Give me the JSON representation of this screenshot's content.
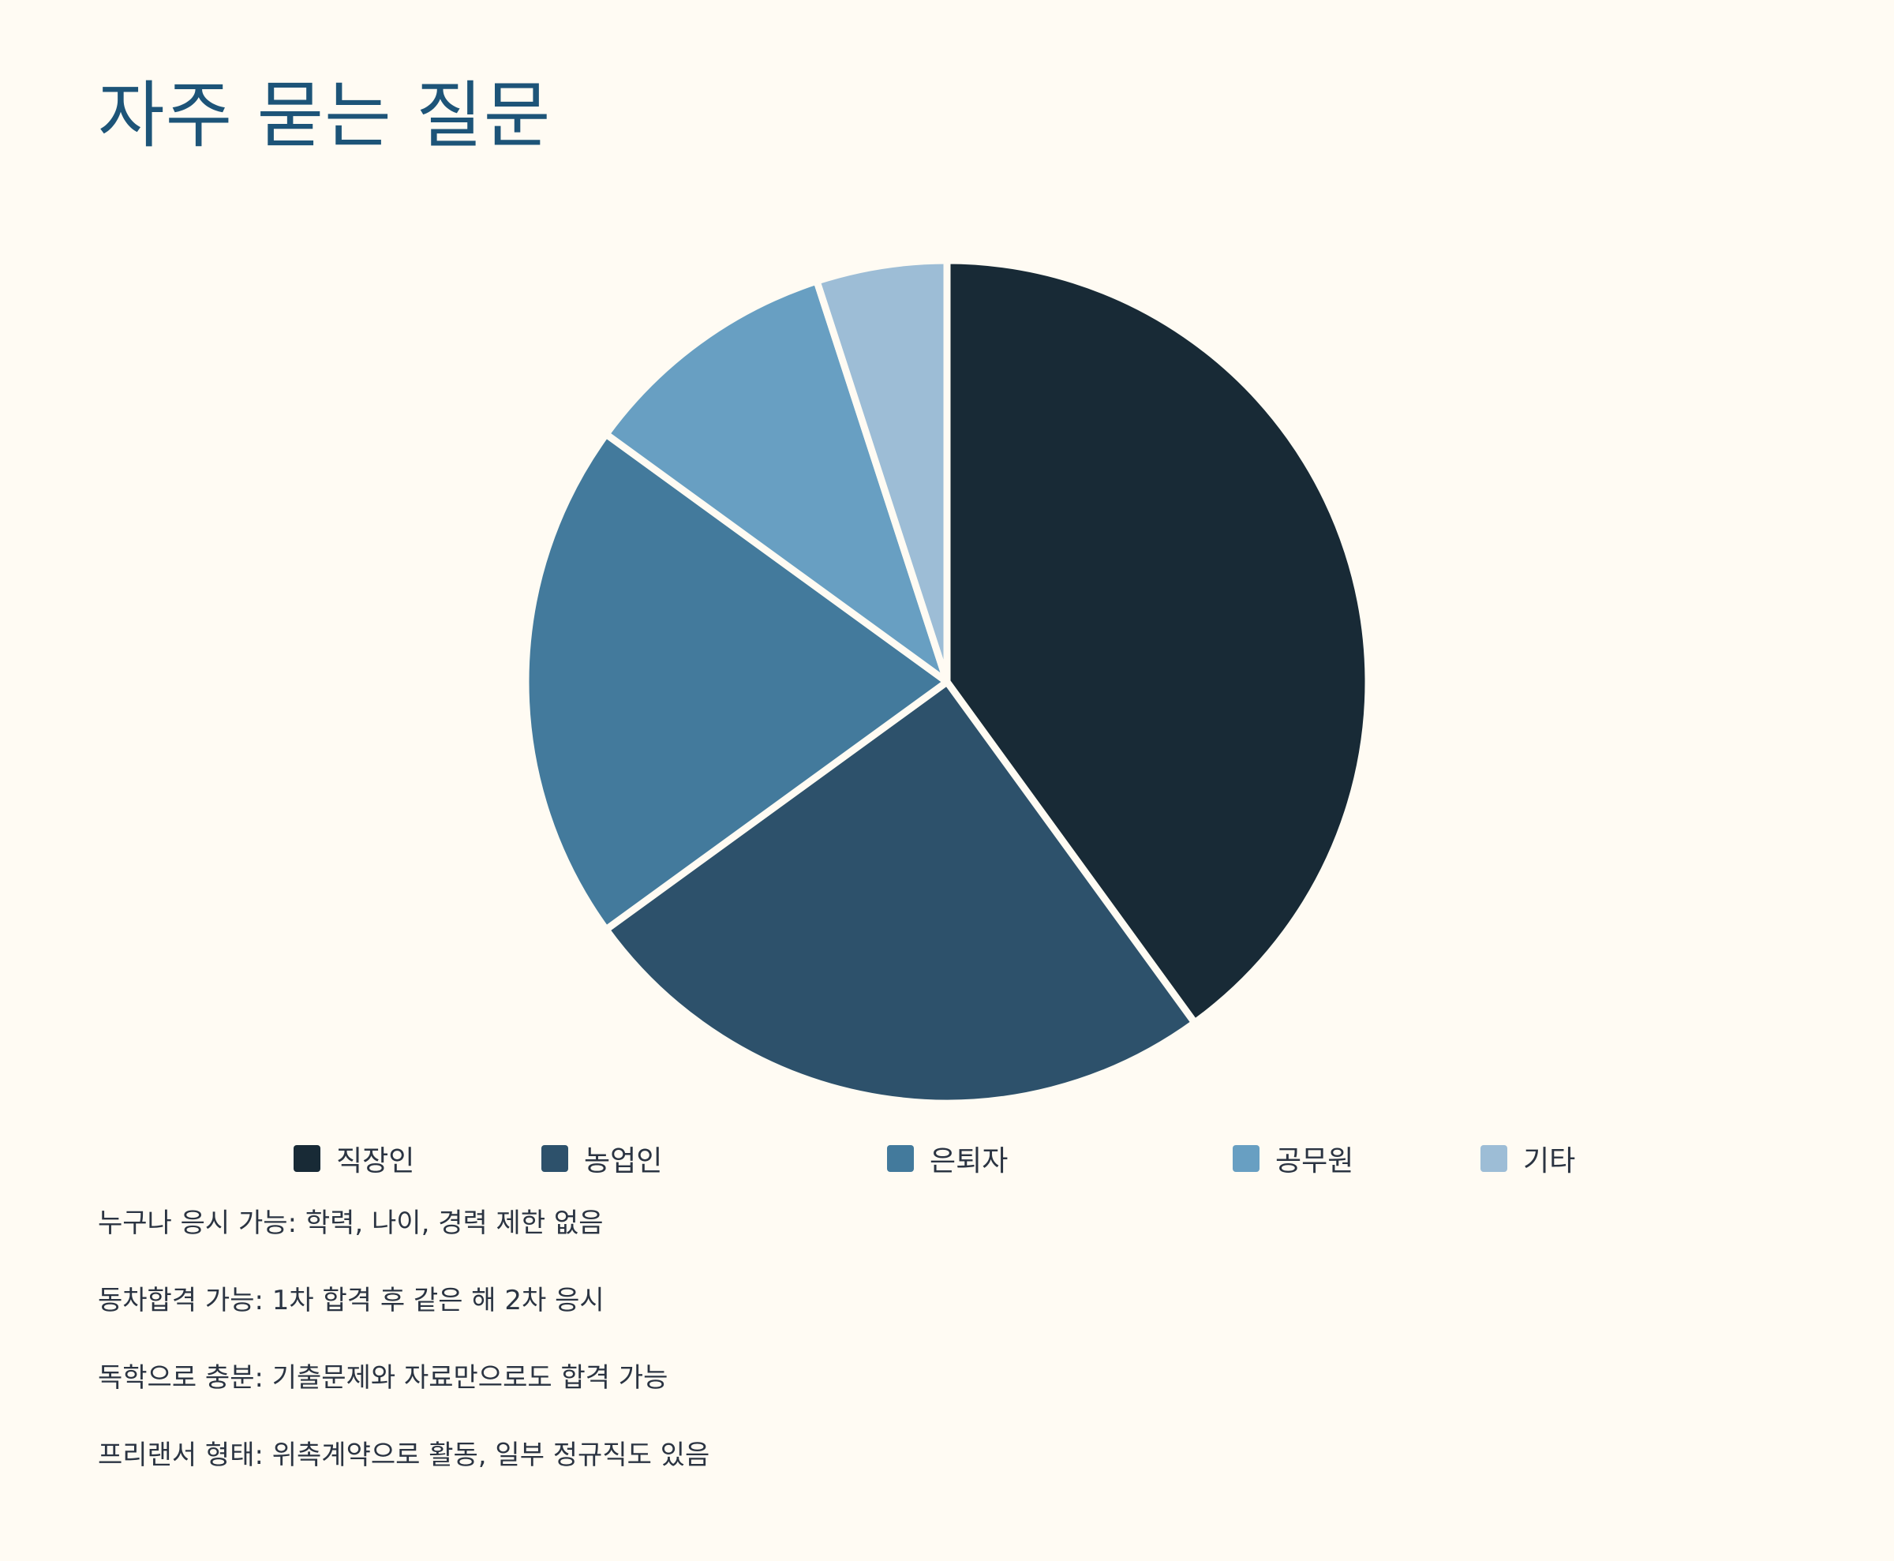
{
  "page": {
    "title": "자주 묻는 질문"
  },
  "colors": {
    "background": "#fffbf3",
    "title": "#1d5478",
    "slice_border": "#fffbf3"
  },
  "chart_data": {
    "type": "pie",
    "title": "",
    "categories": [
      "직장인",
      "농업인",
      "은퇴자",
      "공무원",
      "기타"
    ],
    "values": [
      40,
      25,
      20,
      10,
      5
    ],
    "colors": [
      "#182a36",
      "#2d516b",
      "#437a9c",
      "#689fc2",
      "#9dbdd6"
    ],
    "start_angle": "top (12 o'clock)",
    "direction": "clockwise",
    "legend_position": "bottom"
  },
  "legend": {
    "items": [
      {
        "label": "직장인",
        "color": "#182a36"
      },
      {
        "label": "농업인",
        "color": "#2d516b"
      },
      {
        "label": "은퇴자",
        "color": "#437a9c"
      },
      {
        "label": "공무원",
        "color": "#689fc2"
      },
      {
        "label": "기타",
        "color": "#9dbdd6"
      }
    ]
  },
  "faq": {
    "items": [
      "누구나 응시 가능: 학력, 나이, 경력 제한 없음",
      "동차합격 가능: 1차 합격 후 같은 해 2차 응시",
      "독학으로 충분: 기출문제와 자료만으로도 합격 가능",
      "프리랜서 형태: 위촉계약으로 활동, 일부 정규직도 있음"
    ]
  }
}
